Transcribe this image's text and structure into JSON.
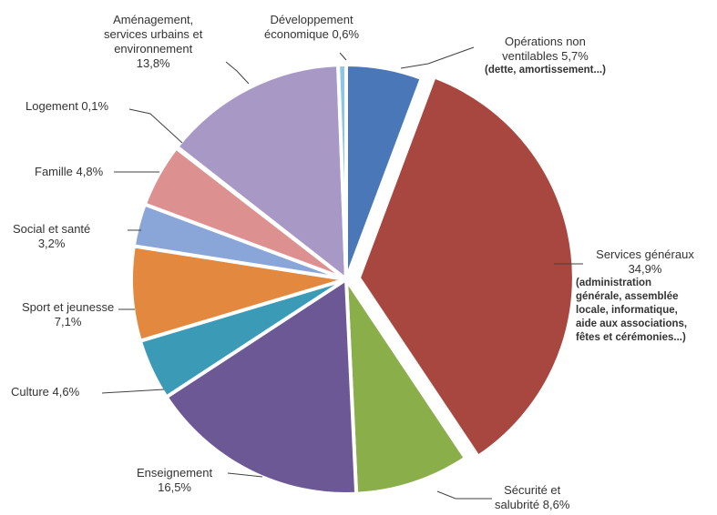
{
  "chart_data": {
    "type": "pie",
    "slices": [
      {
        "name": "Opérations non ventilables",
        "value": 5.7,
        "label_name": "Opérations non ventilables",
        "label_value": "5,7%",
        "note": "(dette, amortissement...)",
        "color": "#4a77b8",
        "exploded": false
      },
      {
        "name": "Services généraux",
        "value": 34.9,
        "label_name": "Services généraux",
        "label_value": "34,9%",
        "note": "(administration générale, assemblée locale, informatique, aide aux associations, fêtes et cérémonies...)",
        "color": "#a8473f",
        "exploded": true
      },
      {
        "name": "Sécurité et salubrité",
        "value": 8.6,
        "label_name": "Sécurité et salubrité",
        "label_value": "8,6%",
        "color": "#8aae4a",
        "exploded": false
      },
      {
        "name": "Enseignement",
        "value": 16.5,
        "label_name": "Enseignement",
        "label_value": "16,5%",
        "color": "#6d5896",
        "exploded": false
      },
      {
        "name": "Culture",
        "value": 4.6,
        "label_name": "Culture",
        "label_value": "4,6%",
        "color": "#3b9ab6",
        "exploded": false
      },
      {
        "name": "Sport et jeunesse",
        "value": 7.1,
        "label_name": "Sport et jeunesse",
        "label_value": "7,1%",
        "color": "#e3883f",
        "exploded": false
      },
      {
        "name": "Social et santé",
        "value": 3.2,
        "label_name": "Social et santé",
        "label_value": "3,2%",
        "color": "#8aa5d8",
        "exploded": false
      },
      {
        "name": "Famille",
        "value": 4.8,
        "label_name": "Famille",
        "label_value": "4,8%",
        "color": "#dc9090",
        "exploded": false
      },
      {
        "name": "Logement",
        "value": 0.1,
        "label_name": "Logement",
        "label_value": "0,1%",
        "color": "#c6d79a",
        "exploded": false
      },
      {
        "name": "Aménagement, services urbains et environnement",
        "value": 13.8,
        "label_name": "Aménagement, services urbains et environnement",
        "label_value": "13,8%",
        "color": "#a898c6",
        "exploded": false
      },
      {
        "name": "Développement économique",
        "value": 0.6,
        "label_name": "Développement économique",
        "label_value": "0,6%",
        "color": "#8cc6e0",
        "exploded": false
      }
    ],
    "start_angle_deg": 0,
    "direction": "clockwise",
    "legend": "none"
  },
  "labels": {
    "operations": {
      "line1": "Opérations non",
      "line2": "ventilables 5,7%",
      "line3": "(dette, amortissement...)"
    },
    "services": {
      "line1": "Services généraux",
      "line2": "34,9%",
      "line3": "(administration",
      "line4": "générale, assemblée",
      "line5": "locale, informatique,",
      "line6": "aide aux associations,",
      "line7": "fêtes et cérémonies...)"
    },
    "securite": {
      "line1": "Sécurité et",
      "line2": "salubrité 8,6%"
    },
    "enseignement": {
      "line1": "Enseignement",
      "line2": "16,5%"
    },
    "culture": {
      "line1": "Culture 4,6%"
    },
    "sport": {
      "line1": "Sport et jeunesse",
      "line2": "7,1%"
    },
    "social": {
      "line1": "Social et santé",
      "line2": "3,2%"
    },
    "famille": {
      "line1": "Famille 4,8%"
    },
    "logement": {
      "line1": "Logement 0,1%"
    },
    "amenagement": {
      "line1": "Aménagement,",
      "line2": "services urbains et",
      "line3": "environnement",
      "line4": "13,8%"
    },
    "developpement": {
      "line1": "Développement",
      "line2": "économique 0,6%"
    }
  }
}
